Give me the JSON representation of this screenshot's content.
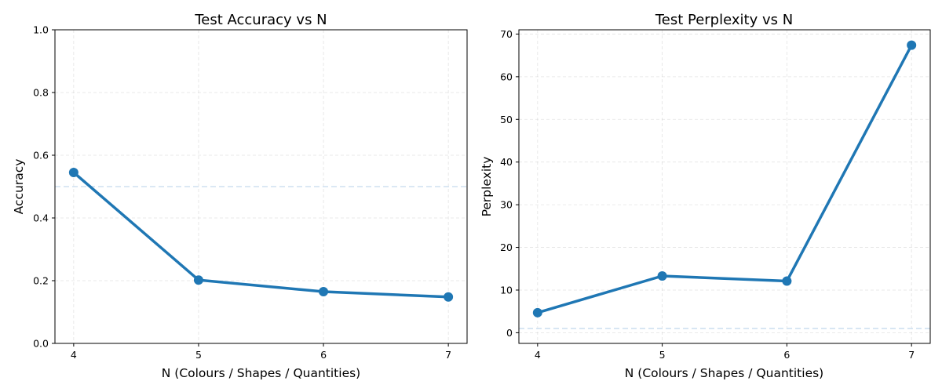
{
  "colors": {
    "line": "#1f77b4",
    "reference": "#cfe0f0"
  },
  "chart_data": [
    {
      "type": "line",
      "title": "Test Accuracy vs N",
      "xlabel": "N (Colours / Shapes / Quantities)",
      "ylabel": "Accuracy",
      "x": [
        4,
        5,
        6,
        7
      ],
      "y": [
        0.545,
        0.202,
        0.165,
        0.148
      ],
      "xticks": [
        "4",
        "5",
        "6",
        "7"
      ],
      "yticks": [
        "0.0",
        "0.2",
        "0.4",
        "0.6",
        "0.8",
        "1.0"
      ],
      "ylim": [
        0,
        1
      ],
      "reference_line": 0.5,
      "grid": true
    },
    {
      "type": "line",
      "title": "Test Perplexity vs N",
      "xlabel": "N (Colours / Shapes / Quantities)",
      "ylabel": "Perplexity",
      "x": [
        4,
        5,
        6,
        7
      ],
      "y": [
        4.7,
        13.3,
        12.1,
        67.4
      ],
      "xticks": [
        "4",
        "5",
        "6",
        "7"
      ],
      "yticks": [
        "0",
        "10",
        "20",
        "30",
        "40",
        "50",
        "60",
        "70"
      ],
      "ylim": [
        -2.5,
        71
      ],
      "reference_line": 1,
      "grid": true
    }
  ]
}
